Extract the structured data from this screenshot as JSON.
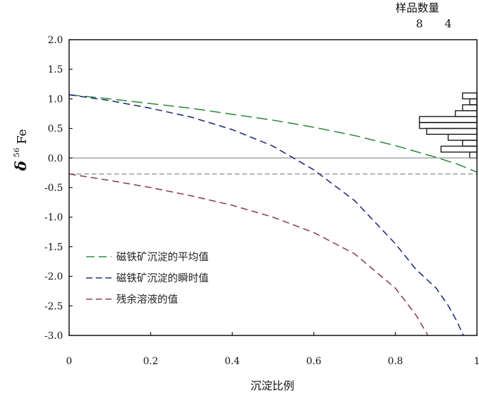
{
  "chart_data": {
    "type": "line",
    "xlabel": "沉淀比例",
    "ylabel_greek": "δ",
    "ylabel_sup": "56",
    "ylabel_rest": "Fe",
    "xlim": [
      0,
      1
    ],
    "ylim": [
      -3.0,
      2.0
    ],
    "x_ticks": [
      0,
      0.2,
      0.4,
      0.6,
      0.8,
      1
    ],
    "x_tick_labels": [
      "0",
      "0.2",
      "0.4",
      "0.6",
      "0.8",
      "1"
    ],
    "y_ticks": [
      2.0,
      1.5,
      1.0,
      0.5,
      0.0,
      -0.5,
      -1.0,
      -1.5,
      -2.0,
      -2.5,
      -3.0
    ],
    "y_tick_labels": [
      "2.0",
      "1.5",
      "1.0",
      "0.5",
      "0.0",
      "-0.5",
      "-1.0",
      "-1.5",
      "-2.0",
      "-2.5",
      "-3.0"
    ],
    "series": [
      {
        "name": "磁铁矿沉淀的平均值",
        "color": "#2e8b3e",
        "style": "long-dash",
        "x": [
          0,
          0.1,
          0.2,
          0.3,
          0.4,
          0.5,
          0.6,
          0.7,
          0.8,
          0.85,
          0.9,
          0.95,
          0.98,
          1.0
        ],
        "y": [
          1.07,
          1.0,
          0.92,
          0.84,
          0.74,
          0.64,
          0.52,
          0.38,
          0.21,
          0.11,
          0.01,
          -0.1,
          -0.18,
          -0.24
        ]
      },
      {
        "name": "磁铁矿沉淀的瞬时值",
        "color": "#1f2a78",
        "style": "dash",
        "x": [
          0,
          0.1,
          0.2,
          0.3,
          0.4,
          0.5,
          0.6,
          0.7,
          0.8,
          0.85,
          0.9,
          0.93,
          0.95,
          0.967
        ],
        "y": [
          1.07,
          0.97,
          0.84,
          0.69,
          0.48,
          0.2,
          -0.2,
          -0.72,
          -1.45,
          -1.88,
          -2.2,
          -2.5,
          -2.75,
          -3.0
        ]
      },
      {
        "name": "残余溶液的值",
        "color": "#8a3a5a",
        "style": "dash",
        "x": [
          0,
          0.1,
          0.2,
          0.3,
          0.4,
          0.5,
          0.6,
          0.7,
          0.8,
          0.85,
          0.88
        ],
        "y": [
          -0.27,
          -0.38,
          -0.5,
          -0.64,
          -0.8,
          -1.0,
          -1.26,
          -1.62,
          -2.2,
          -2.65,
          -3.0
        ]
      }
    ],
    "reference_lines": [
      {
        "y": 0.0,
        "style": "solid",
        "color": "#888888"
      },
      {
        "y": -0.27,
        "style": "dash",
        "color": "#888888"
      }
    ],
    "histogram": {
      "title": "样品数量",
      "count_ticks": [
        8,
        4
      ],
      "count_tick_labels": [
        "8",
        "4"
      ],
      "bin_width": 0.1,
      "bins": [
        {
          "y": 1.05,
          "count": 2
        },
        {
          "y": 0.95,
          "count": 1
        },
        {
          "y": 0.85,
          "count": 2
        },
        {
          "y": 0.75,
          "count": 3
        },
        {
          "y": 0.65,
          "count": 8
        },
        {
          "y": 0.55,
          "count": 8
        },
        {
          "y": 0.45,
          "count": 7
        },
        {
          "y": 0.35,
          "count": 4
        },
        {
          "y": 0.25,
          "count": 2
        },
        {
          "y": 0.15,
          "count": 5
        },
        {
          "y": 0.05,
          "count": 1
        }
      ]
    },
    "legend_position": "lower-left",
    "grid": false
  }
}
